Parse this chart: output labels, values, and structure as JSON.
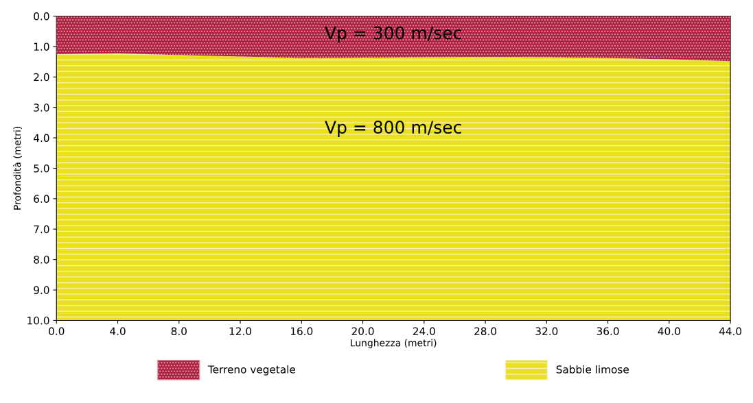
{
  "chart_data": {
    "type": "area",
    "stacked": true,
    "xlabel": "Lunghezza (metri)",
    "ylabel": "Profondità (metri)",
    "x": [
      0,
      4,
      8,
      12,
      16,
      20,
      24,
      28,
      32,
      36,
      40,
      44
    ],
    "series": [
      {
        "name": "Terreno vegetale",
        "color": "#b02040",
        "values": [
          1.25,
          1.22,
          1.28,
          1.33,
          1.38,
          1.37,
          1.35,
          1.34,
          1.35,
          1.38,
          1.42,
          1.48
        ]
      },
      {
        "name": "Sabbie limose",
        "color": "#e8e020",
        "values": [
          8.75,
          8.78,
          8.72,
          8.67,
          8.62,
          8.63,
          8.65,
          8.66,
          8.65,
          8.62,
          8.58,
          8.52
        ]
      }
    ],
    "annotations": [
      "Vp = 300 m/sec",
      "Vp = 800 m/sec"
    ],
    "xlim": [
      0,
      44
    ],
    "xticks": [
      {
        "value": 0,
        "label": "0.0"
      },
      {
        "value": 4,
        "label": "4.0"
      },
      {
        "value": 8,
        "label": "8.0"
      },
      {
        "value": 12,
        "label": "12.0"
      },
      {
        "value": 16,
        "label": "16.0"
      },
      {
        "value": 20,
        "label": "20.0"
      },
      {
        "value": 24,
        "label": "24.0"
      },
      {
        "value": 28,
        "label": "28.0"
      },
      {
        "value": 32,
        "label": "32.0"
      },
      {
        "value": 36,
        "label": "36.0"
      },
      {
        "value": 40,
        "label": "40.0"
      },
      {
        "value": 44,
        "label": "44.0"
      }
    ],
    "ylim": [
      10,
      0
    ],
    "yticks": [
      {
        "value": 0,
        "label": "0.0"
      },
      {
        "value": 1,
        "label": "1.0"
      },
      {
        "value": 2,
        "label": "2.0"
      },
      {
        "value": 3,
        "label": "3.0"
      },
      {
        "value": 4,
        "label": "4.0"
      },
      {
        "value": 5,
        "label": "5.0"
      },
      {
        "value": 6,
        "label": "6.0"
      },
      {
        "value": 7,
        "label": "7.0"
      },
      {
        "value": 8,
        "label": "8.0"
      },
      {
        "value": 9,
        "label": "9.0"
      },
      {
        "value": 10,
        "label": "10.0"
      }
    ],
    "legend": "bottom",
    "grid": false
  }
}
